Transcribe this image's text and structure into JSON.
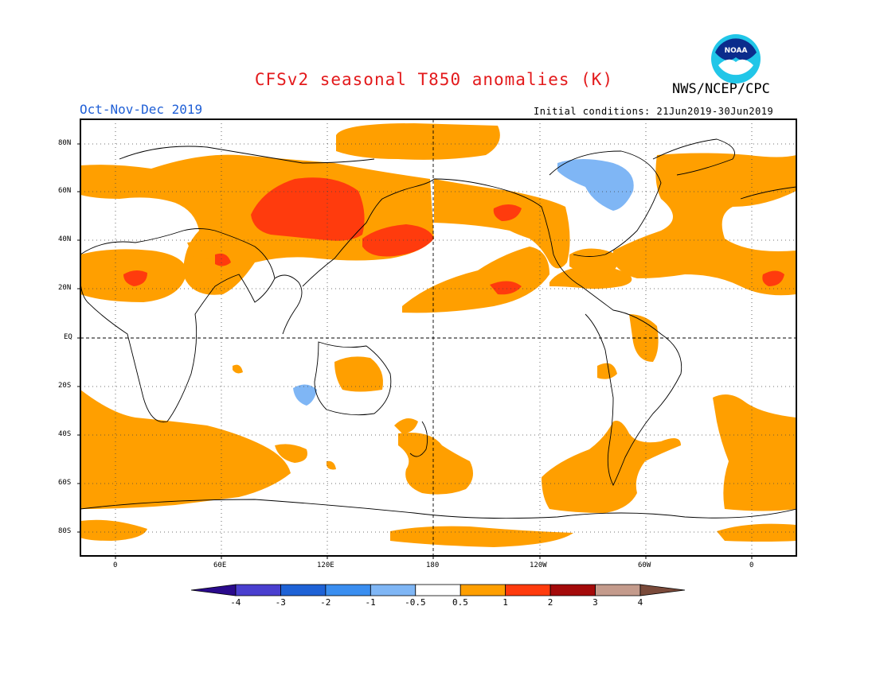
{
  "header": {
    "title": "CFSv2 seasonal T850 anomalies (K)",
    "agency": "NWS/NCEP/CPC",
    "season": "Oct-Nov-Dec 2019",
    "initial_conditions": "Initial conditions: 21Jun2019-30Jun2019",
    "logo_text": "NOAA"
  },
  "colors": {
    "title": "#e31a1c",
    "season": "#1f5fd6",
    "frame": "#000000",
    "gridline": "#444444"
  },
  "map": {
    "lat_labels": [
      "80N",
      "60N",
      "40N",
      "20N",
      "EQ",
      "20S",
      "40S",
      "60S",
      "80S"
    ],
    "lon_labels": [
      "0",
      "60E",
      "120E",
      "180",
      "120W",
      "60W",
      "0"
    ]
  },
  "colorbar": {
    "labels": [
      "-4",
      "-3",
      "-2",
      "-1",
      "-0.5",
      "0.5",
      "1",
      "2",
      "3",
      "4"
    ],
    "colors": [
      "#2a0a8c",
      "#4a3fcf",
      "#1e62d6",
      "#3a8ef0",
      "#7fb6f5",
      "#ffffff",
      "#ff9f00",
      "#ff3b0d",
      "#a40a0a",
      "#c49b8c",
      "#7a4a3a"
    ]
  },
  "legend_icons": {
    "logo": "noaa-logo-icon"
  }
}
